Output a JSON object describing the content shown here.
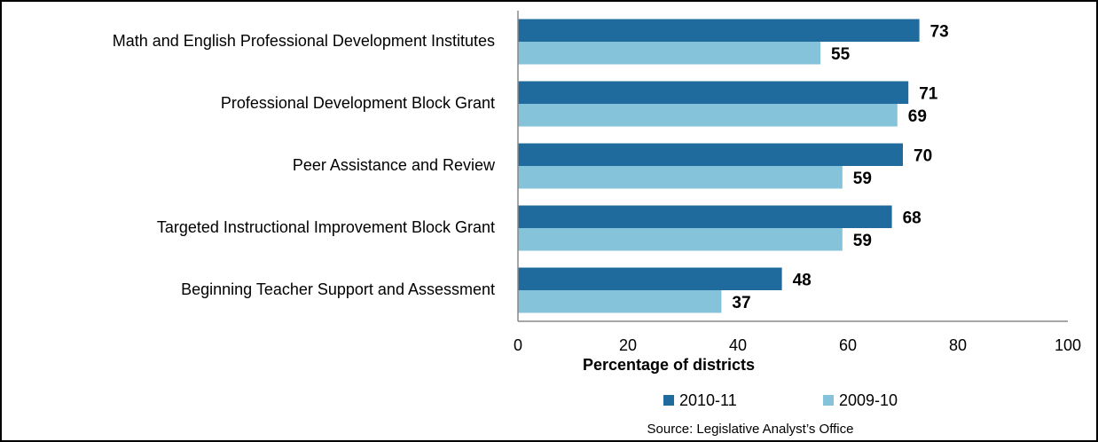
{
  "chart_data": {
    "type": "bar",
    "categories": [
      "Math and English Professional Development Institutes",
      "Professional Development Block Grant",
      "Peer Assistance and Review",
      "Targeted Instructional Improvement Block Grant",
      "Beginning Teacher Support and Assessment"
    ],
    "series": [
      {
        "name": "2010-11",
        "color": "#1f6b9e",
        "values": [
          73,
          71,
          70,
          68,
          48
        ]
      },
      {
        "name": "2009-10",
        "color": "#84c3d9",
        "values": [
          55,
          69,
          59,
          59,
          37
        ]
      }
    ],
    "xlim": [
      0,
      100
    ],
    "xticks": [
      0,
      20,
      40,
      60,
      80,
      100
    ],
    "x_label": "Percentage of districts",
    "source": "Source: Legislative Analyst’s Office"
  }
}
